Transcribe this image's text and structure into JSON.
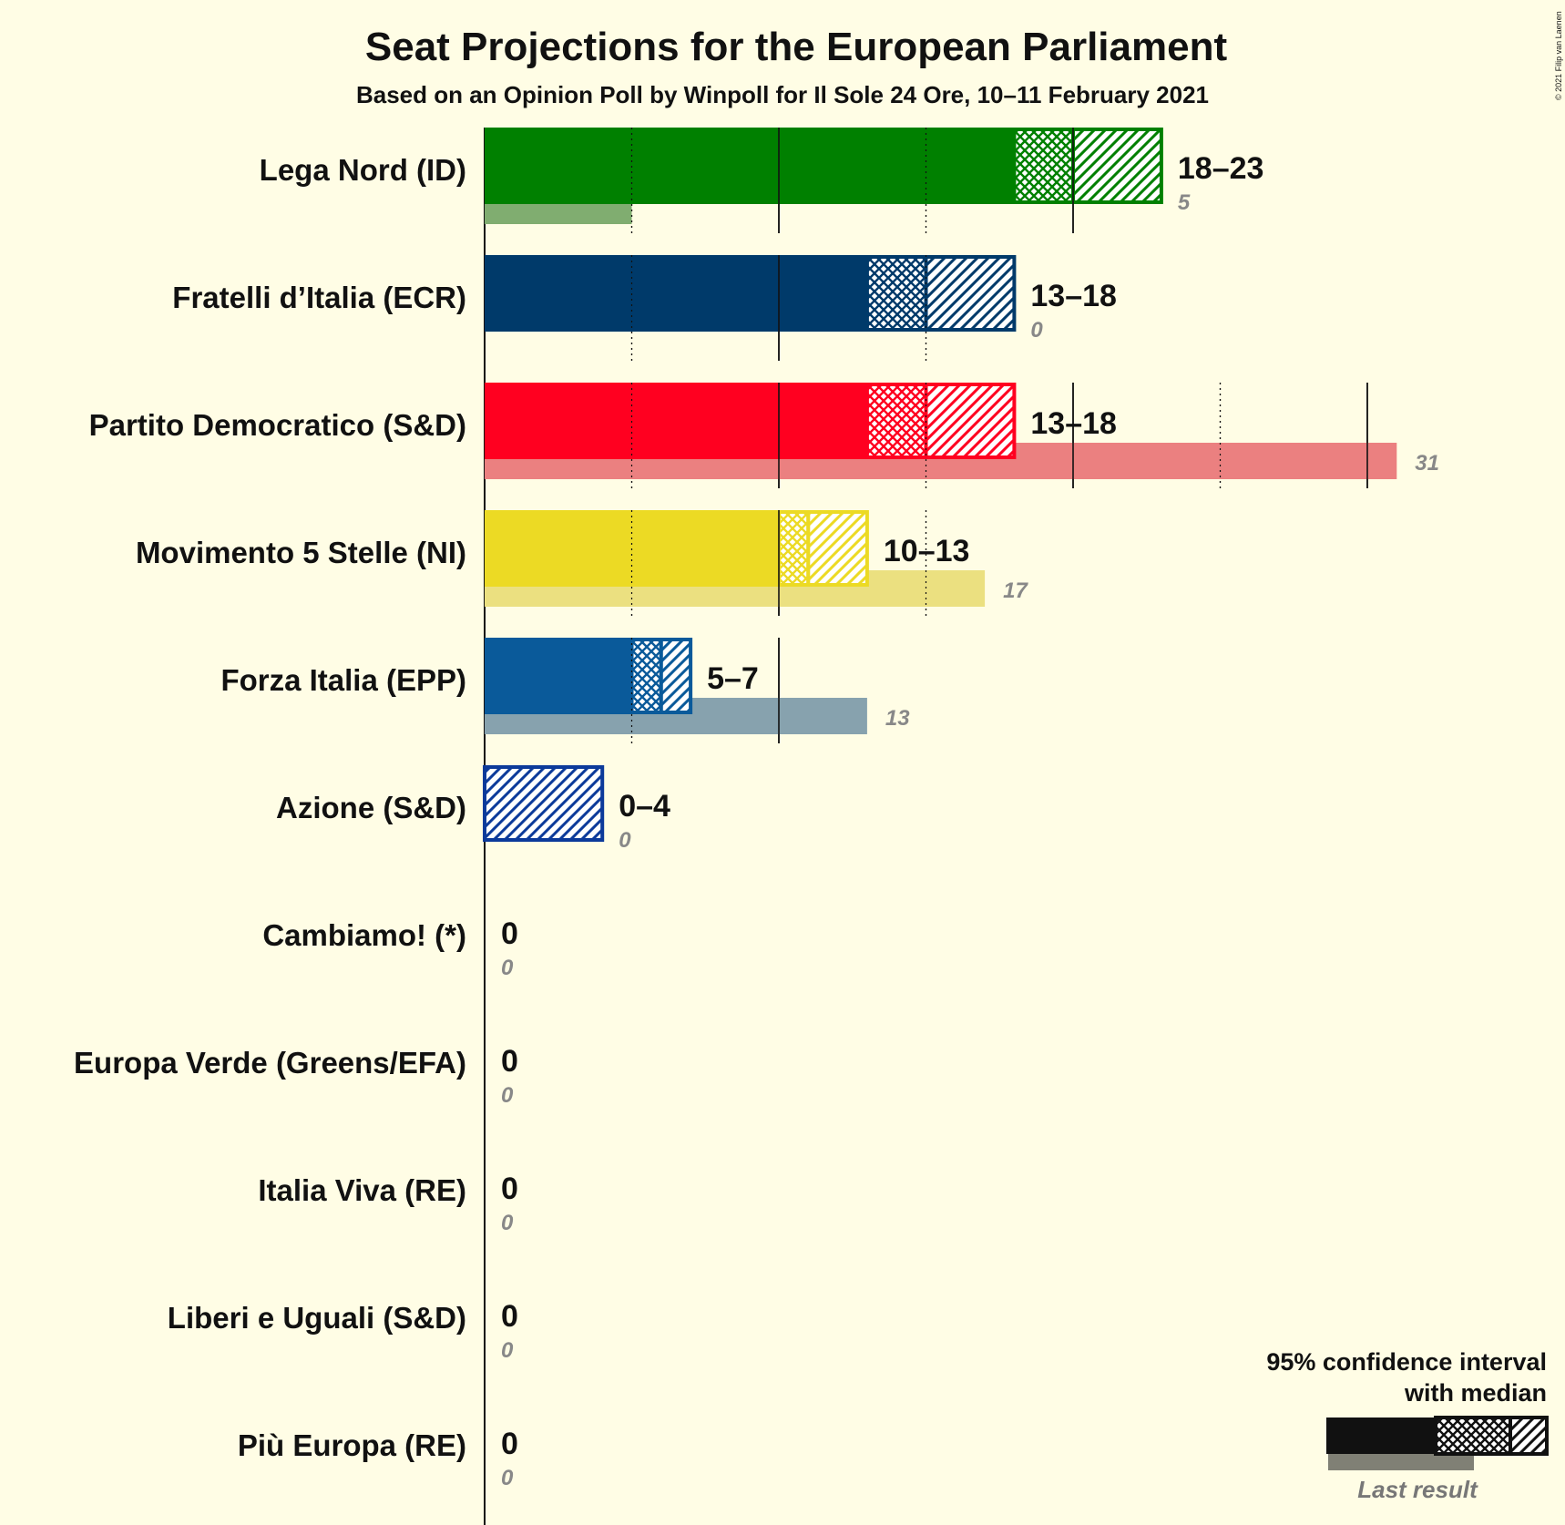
{
  "chart_data": {
    "type": "bar",
    "title": "Seat Projections for the European Parliament",
    "subtitle": "Based on an Opinion Poll by Winpoll for Il Sole 24 Ore, 10–11 February 2021",
    "copyright": "© 2021 Filip van Laenen",
    "xlim": [
      0,
      31
    ],
    "parties": [
      {
        "name": "Lega Nord (ID)",
        "color": "#008000",
        "last_color": "#80ad70",
        "low": 18,
        "median": 20,
        "high": 23,
        "label": "18–23",
        "last": 5,
        "last_label": "5"
      },
      {
        "name": "Fratelli d’Italia (ECR)",
        "color": "#003a6a",
        "last_color": "#80a0b5",
        "low": 13,
        "median": 15,
        "high": 18,
        "label": "13–18",
        "last": 0,
        "last_label": "0"
      },
      {
        "name": "Partito Democratico (S&D)",
        "color": "#ff0020",
        "last_color": "#eb8080",
        "low": 13,
        "median": 15,
        "high": 18,
        "label": "13–18",
        "last": 31,
        "last_label": "31"
      },
      {
        "name": "Movimento 5 Stelle (NI)",
        "color": "#ecda24",
        "last_color": "#ebe080",
        "low": 10,
        "median": 11,
        "high": 13,
        "label": "10–13",
        "last": 17,
        "last_label": "17"
      },
      {
        "name": "Forza Italia (EPP)",
        "color": "#0a5a9a",
        "last_color": "#87a2ae",
        "low": 5,
        "median": 6,
        "high": 7,
        "label": "5–7",
        "last": 13,
        "last_label": "13"
      },
      {
        "name": "Azione (S&D)",
        "color": "#0c3a9a",
        "last_color": "#8a9ad0",
        "low": 0,
        "median": 0,
        "high": 4,
        "label": "0–4",
        "last": 0,
        "last_label": "0"
      },
      {
        "name": "Cambiamo! (*)",
        "color": "#888888",
        "last_color": "#bbbbbb",
        "low": 0,
        "median": 0,
        "high": 0,
        "label": "0",
        "last": 0,
        "last_label": "0"
      },
      {
        "name": "Europa Verde (Greens/EFA)",
        "color": "#57b45f",
        "last_color": "#a0d0a0",
        "low": 0,
        "median": 0,
        "high": 0,
        "label": "0",
        "last": 0,
        "last_label": "0"
      },
      {
        "name": "Italia Viva (RE)",
        "color": "#d6418c",
        "last_color": "#e0a0c0",
        "low": 0,
        "median": 0,
        "high": 0,
        "label": "0",
        "last": 0,
        "last_label": "0"
      },
      {
        "name": "Liberi e Uguali (S&D)",
        "color": "#c80000",
        "last_color": "#e08080",
        "low": 0,
        "median": 0,
        "high": 0,
        "label": "0",
        "last": 0,
        "last_label": "0"
      },
      {
        "name": "Più Europa (RE)",
        "color": "#ffd700",
        "last_color": "#f0e090",
        "low": 0,
        "median": 0,
        "high": 0,
        "label": "0",
        "last": 0,
        "last_label": "0"
      }
    ],
    "legend": {
      "line1": "95% confidence interval",
      "line2": "with median",
      "last_result": "Last result",
      "placement": "bottom-right"
    }
  }
}
